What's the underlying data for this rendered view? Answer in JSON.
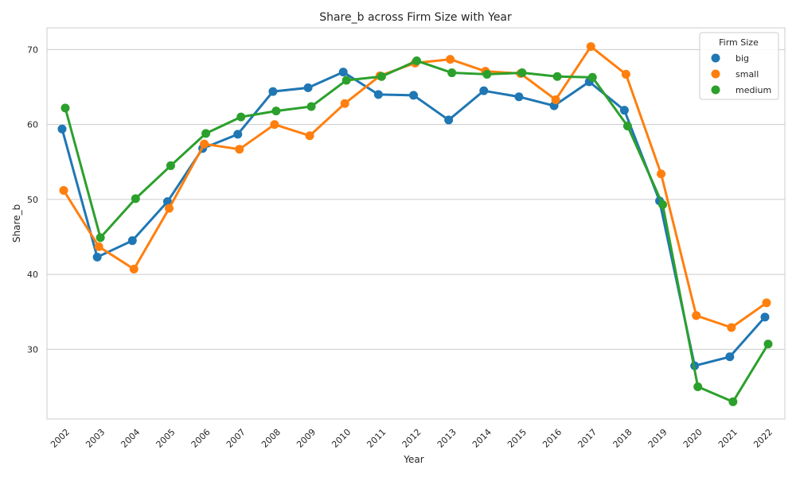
{
  "chart_data": {
    "type": "line",
    "title": "Share_b across Firm Size with Year",
    "xlabel": "Year",
    "ylabel": "Share_b",
    "categories": [
      "2002",
      "2003",
      "2004",
      "2005",
      "2006",
      "2007",
      "2008",
      "2009",
      "2010",
      "2011",
      "2012",
      "2013",
      "2014",
      "2015",
      "2016",
      "2017",
      "2018",
      "2019",
      "2020",
      "2021",
      "2022"
    ],
    "y_ticks": [
      30,
      40,
      50,
      60,
      70
    ],
    "ylim": [
      20.7,
      72.9
    ],
    "grid": "horizontal",
    "legend": {
      "title": "Firm Size",
      "position": "top-right"
    },
    "series": [
      {
        "name": "big",
        "color": "#1f77b4",
        "values": [
          59.4,
          42.3,
          44.5,
          49.7,
          56.8,
          58.7,
          64.4,
          64.9,
          67.0,
          64.0,
          63.9,
          60.6,
          64.5,
          63.7,
          62.5,
          65.7,
          61.9,
          49.8,
          27.8,
          29.0,
          34.3
        ]
      },
      {
        "name": "small",
        "color": "#ff7f0e",
        "values": [
          51.2,
          43.7,
          40.7,
          48.8,
          57.4,
          56.7,
          60.0,
          58.5,
          62.8,
          66.5,
          68.2,
          68.7,
          67.1,
          66.8,
          63.3,
          70.4,
          66.7,
          53.4,
          34.5,
          32.9,
          36.2
        ]
      },
      {
        "name": "medium",
        "color": "#2ca02c",
        "values": [
          62.2,
          44.9,
          50.1,
          54.5,
          58.8,
          61.0,
          61.8,
          62.4,
          65.9,
          66.4,
          68.5,
          66.9,
          66.7,
          66.9,
          66.4,
          66.3,
          59.8,
          49.3,
          25.0,
          23.0,
          30.7
        ]
      }
    ]
  }
}
